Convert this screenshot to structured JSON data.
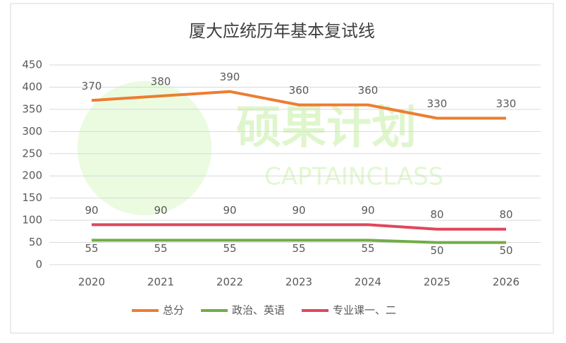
{
  "chart_data": {
    "type": "line",
    "title": "厦大应统历年基本复试线",
    "categories": [
      "2020",
      "2021",
      "2022",
      "2023",
      "2024",
      "2025",
      "2026"
    ],
    "series": [
      {
        "name": "总分",
        "color": "#ed7d31",
        "values": [
          370,
          380,
          390,
          360,
          360,
          330,
          330
        ]
      },
      {
        "name": "政治、英语",
        "color": "#70ad47",
        "values": [
          55,
          55,
          55,
          55,
          55,
          50,
          50
        ]
      },
      {
        "name": "专业课一、二",
        "color": "#e0475b",
        "values": [
          90,
          90,
          90,
          90,
          90,
          80,
          80
        ]
      }
    ],
    "ylim": [
      0,
      450
    ],
    "yticks": [
      0,
      50,
      100,
      150,
      200,
      250,
      300,
      350,
      400,
      450
    ],
    "grid": true,
    "legend": "bottom"
  },
  "watermark": [
    "硕果计划",
    "CAPTAINCLASS"
  ]
}
